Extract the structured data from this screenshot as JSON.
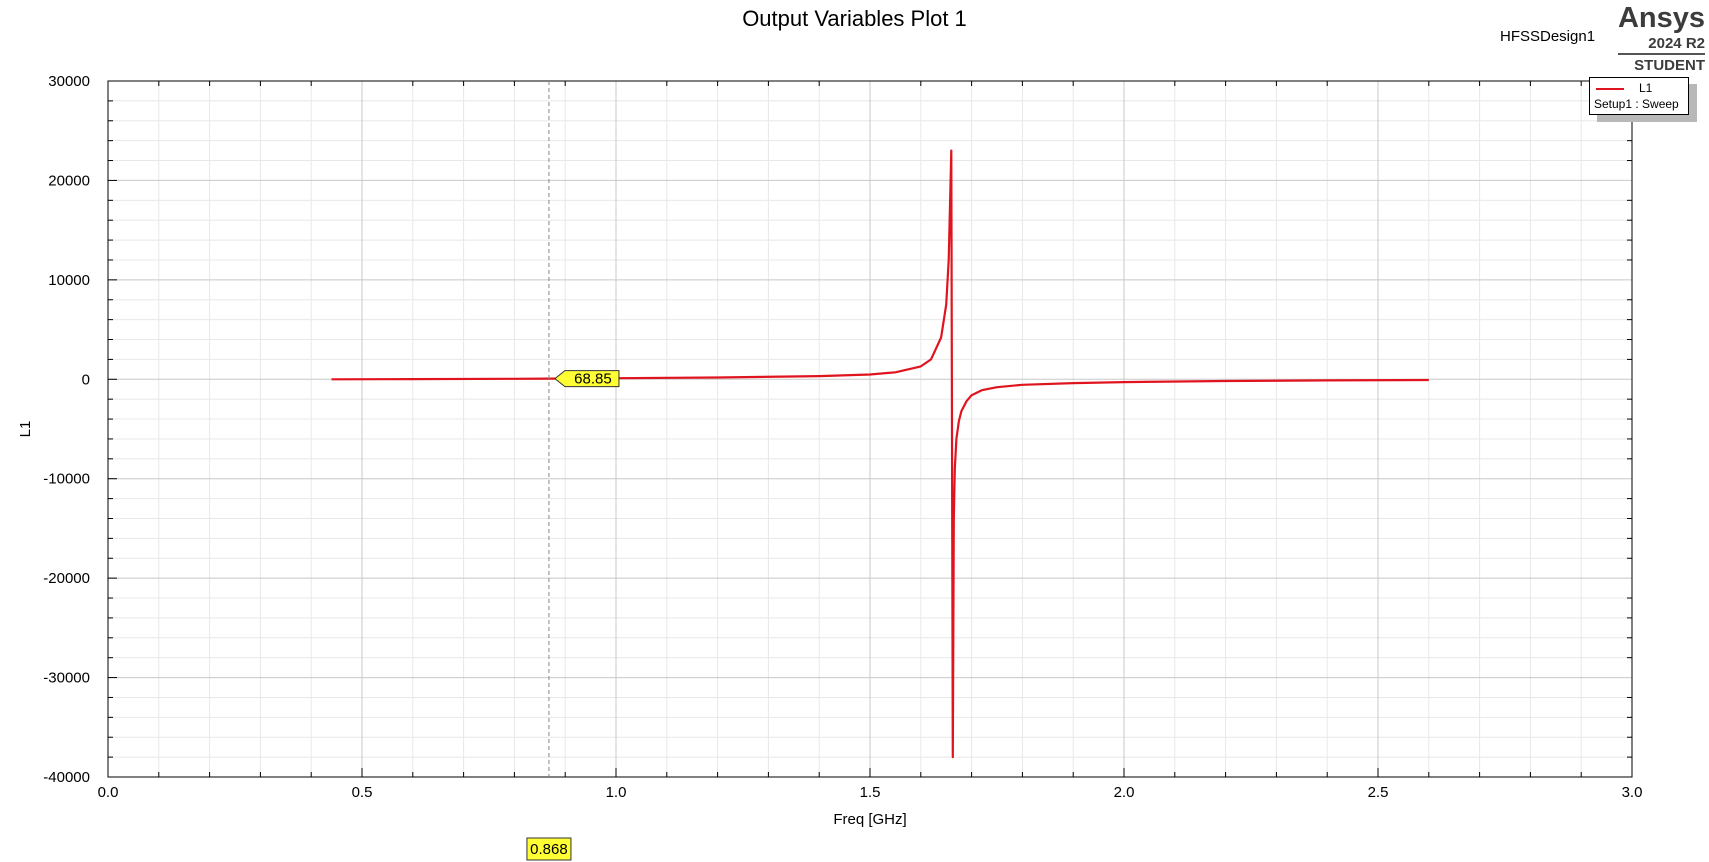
{
  "header": {
    "title": "Output Variables Plot 1",
    "design_name": "HFSSDesign1",
    "brand": {
      "name": "Ansys",
      "version": "2024 R2",
      "edition": "STUDENT"
    }
  },
  "legend": {
    "series_name": "L1",
    "setup": "Setup1 : Sweep"
  },
  "colors": {
    "series": "#e0141e",
    "marker_fill": "#ffff33",
    "grid_major": "#c8c8c8",
    "grid_minor": "#e8e8e8"
  },
  "chart_data": {
    "type": "line",
    "title": "Output Variables Plot 1",
    "xlabel": "Freq [GHz]",
    "ylabel": "L1",
    "xlim": [
      0.0,
      3.0
    ],
    "ylim": [
      -40000,
      30000
    ],
    "x_ticks": [
      "0.0",
      "0.5",
      "1.0",
      "1.5",
      "2.0",
      "2.5",
      "3.0"
    ],
    "y_ticks": [
      "30000",
      "20000",
      "10000",
      "0",
      "-10000",
      "-20000",
      "-30000",
      "-40000"
    ],
    "grid": true,
    "legend_position": "top-right",
    "series": [
      {
        "name": "L1",
        "x": [
          0.44,
          0.6,
          0.8,
          0.868,
          1.0,
          1.2,
          1.4,
          1.5,
          1.55,
          1.6,
          1.62,
          1.64,
          1.65,
          1.655,
          1.66,
          1.663,
          1.665,
          1.667,
          1.67,
          1.675,
          1.68,
          1.69,
          1.7,
          1.72,
          1.75,
          1.8,
          1.9,
          2.0,
          2.2,
          2.4,
          2.6
        ],
        "y": [
          0,
          20,
          45,
          68.85,
          110,
          180,
          320,
          480,
          700,
          1300,
          2000,
          4200,
          7500,
          12000,
          23000,
          -38000,
          -14000,
          -9000,
          -6000,
          -4200,
          -3200,
          -2200,
          -1600,
          -1100,
          -800,
          -550,
          -380,
          -280,
          -170,
          -110,
          -70
        ]
      }
    ],
    "markers": [
      {
        "x": 0.868,
        "y": 68.85,
        "x_label": "0.868",
        "value_label": "68.85"
      }
    ]
  }
}
